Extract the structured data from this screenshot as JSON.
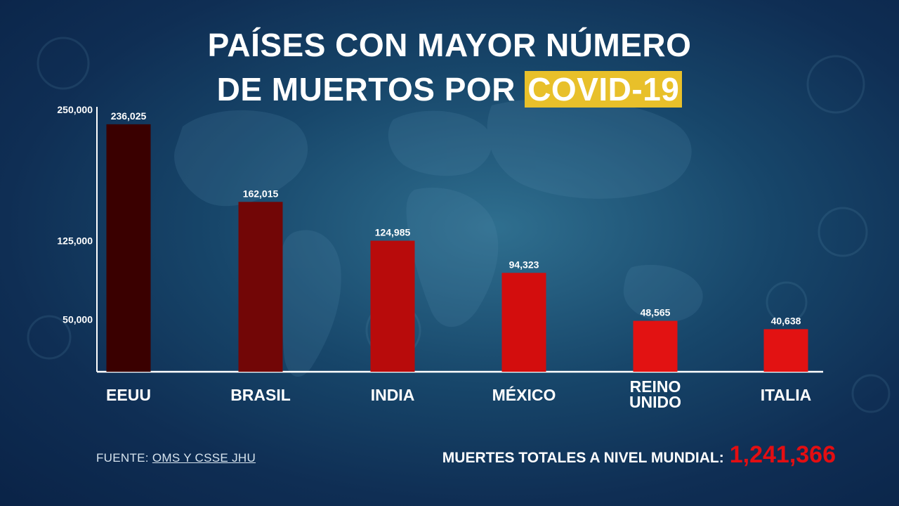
{
  "title": {
    "line1": "PAÍSES CON MAYOR NÚMERO",
    "line2_prefix": "DE MUERTOS POR ",
    "line2_highlight": "COVID-19"
  },
  "colors": {
    "highlight": "#e8c02a",
    "bar_darkest": "#3a0000",
    "bar_dark": "#720606",
    "bar_mid": "#b80b0b",
    "bar_bright": "#d30d0d",
    "bar_red": "#e21212",
    "total_number": "#e30e12"
  },
  "chart_data": {
    "type": "bar",
    "categories": [
      "EEUU",
      "BRASIL",
      "INDIA",
      "MÉXICO",
      "REINO UNIDO",
      "ITALIA"
    ],
    "category_lines": [
      [
        "EEUU"
      ],
      [
        "BRASIL"
      ],
      [
        "INDIA"
      ],
      [
        "MÉXICO"
      ],
      [
        "REINO",
        "UNIDO"
      ],
      [
        "ITALIA"
      ]
    ],
    "values": [
      236025,
      162015,
      124985,
      94323,
      48565,
      40638
    ],
    "value_labels": [
      "236,025",
      "162,015",
      "124,985",
      "94,323",
      "48,565",
      "40,638"
    ],
    "yticks": [
      {
        "value": 250000,
        "label": "250,000"
      },
      {
        "value": 125000,
        "label": "125,000"
      },
      {
        "value": 50000,
        "label": "50,000"
      }
    ],
    "ylim": [
      0,
      250000
    ],
    "grid": false,
    "bar_colors": [
      "#3a0000",
      "#720606",
      "#b80b0b",
      "#d30d0d",
      "#e21212",
      "#e21212"
    ]
  },
  "footer": {
    "source_prefix": "FUENTE: ",
    "source_link": "OMS Y CSSE JHU",
    "total_label": "MUERTES TOTALES A NIVEL MUNDIAL:",
    "total_value": "1,241,366"
  }
}
